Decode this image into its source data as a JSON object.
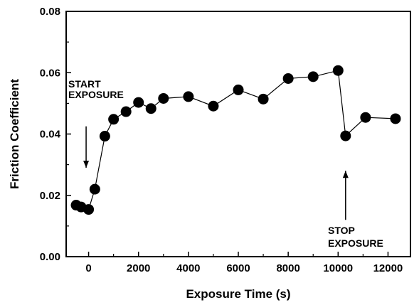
{
  "chart_data": {
    "type": "scatter",
    "xlabel": "Exposure Time (s)",
    "ylabel": "Friction Coefficient",
    "xlim": [
      -900,
      12900
    ],
    "ylim": [
      0,
      0.08
    ],
    "x_ticks": [
      0,
      2000,
      4000,
      6000,
      8000,
      10000,
      12000
    ],
    "x_tick_labels": [
      "0",
      "2000",
      "4000",
      "6000",
      "8000",
      "10000",
      "12000"
    ],
    "y_ticks": [
      0,
      0.02,
      0.04,
      0.06,
      0.08
    ],
    "y_tick_labels": [
      "0.00",
      "0.02",
      "0.04",
      "0.06",
      "0.08"
    ],
    "grid": false,
    "series": [
      {
        "marker": "filled-circle",
        "line": true,
        "color": "#000000",
        "points": [
          {
            "x": -500,
            "y": 0.0168
          },
          {
            "x": -300,
            "y": 0.0162
          },
          {
            "x": 0,
            "y": 0.0154
          },
          {
            "x": 250,
            "y": 0.022
          },
          {
            "x": 650,
            "y": 0.0393
          },
          {
            "x": 1000,
            "y": 0.0448
          },
          {
            "x": 1500,
            "y": 0.0473
          },
          {
            "x": 2000,
            "y": 0.0503
          },
          {
            "x": 2500,
            "y": 0.0483
          },
          {
            "x": 3000,
            "y": 0.0516
          },
          {
            "x": 4000,
            "y": 0.0522
          },
          {
            "x": 5000,
            "y": 0.0491
          },
          {
            "x": 6000,
            "y": 0.0544
          },
          {
            "x": 7000,
            "y": 0.0514
          },
          {
            "x": 8000,
            "y": 0.0581
          },
          {
            "x": 9000,
            "y": 0.0587
          },
          {
            "x": 10000,
            "y": 0.0607
          },
          {
            "x": 10300,
            "y": 0.0394
          },
          {
            "x": 11100,
            "y": 0.0454
          },
          {
            "x": 12300,
            "y": 0.045
          }
        ]
      }
    ],
    "annotations": [
      {
        "name": "start",
        "lines": [
          "START",
          "EXPOSURE"
        ],
        "arrow_tip": {
          "x": -100,
          "y": 0.029
        },
        "arrow_tail": {
          "x": -100,
          "y": 0.0425
        }
      },
      {
        "name": "stop",
        "lines": [
          "STOP",
          "EXPOSURE"
        ],
        "arrow_tip": {
          "x": 10300,
          "y": 0.028
        },
        "arrow_tail": {
          "x": 10300,
          "y": 0.012
        }
      }
    ]
  }
}
